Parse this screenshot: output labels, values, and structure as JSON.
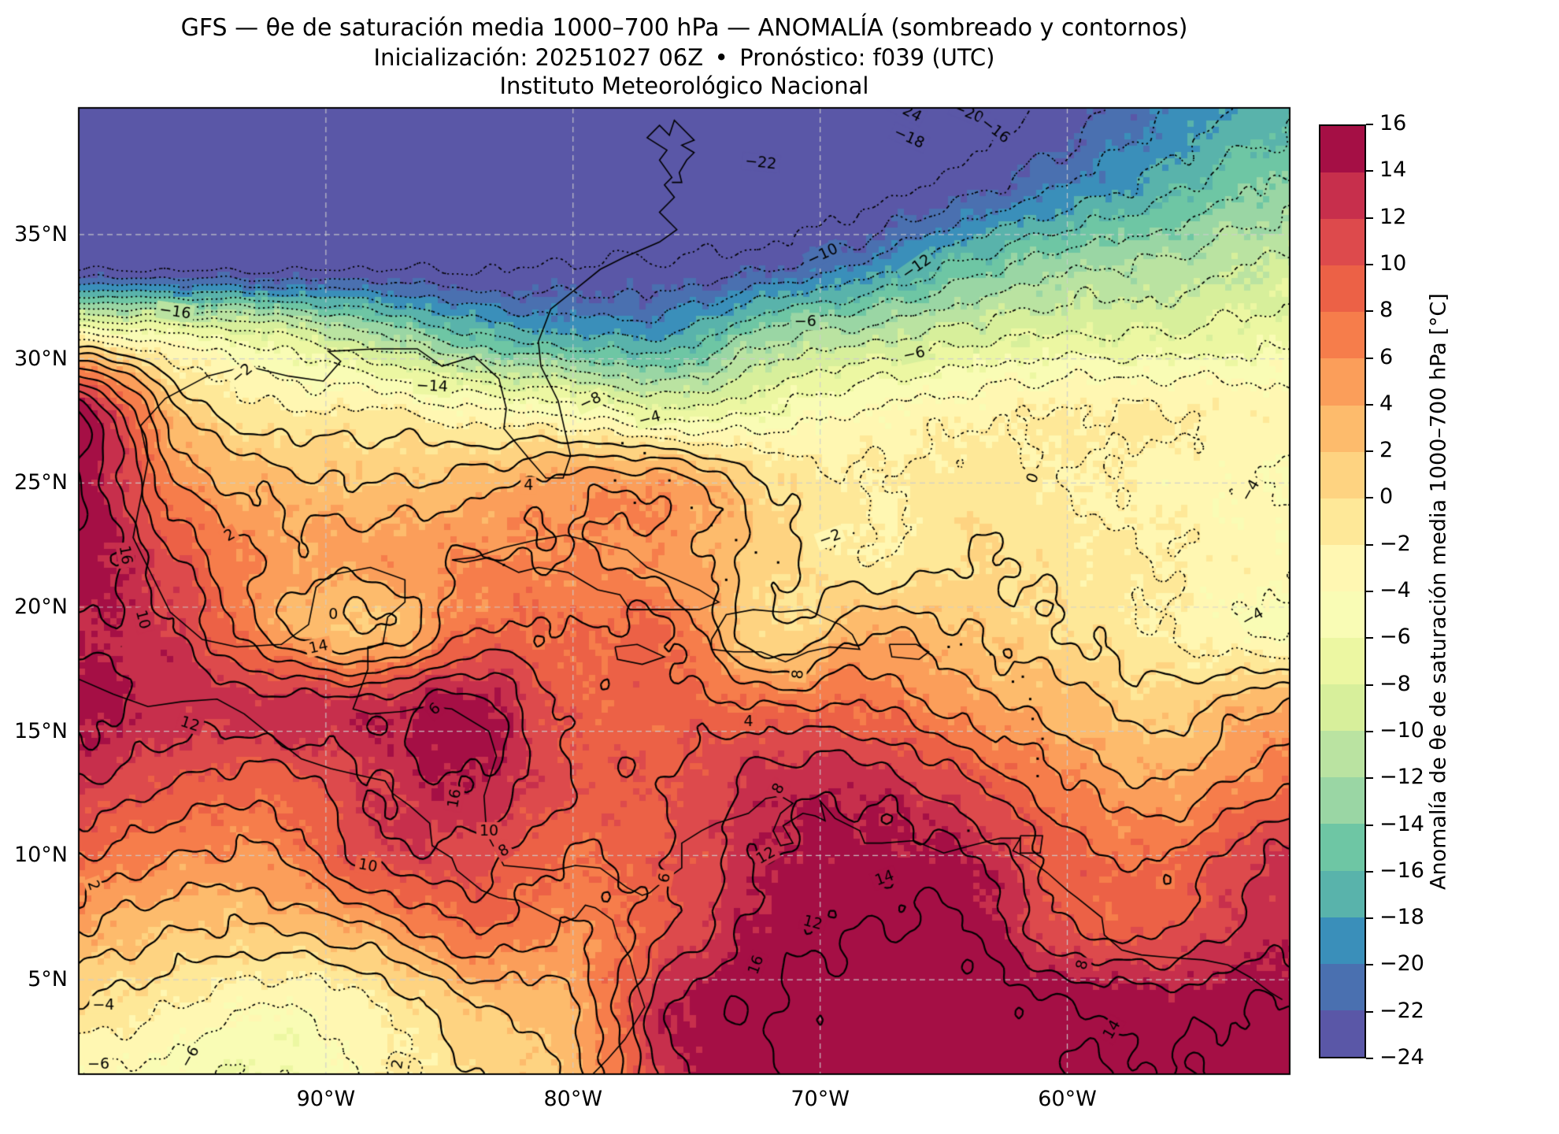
{
  "title": {
    "line1": "GFS — θe de saturación media 1000–700 hPa — ANOMALÍA (sombreado y contornos)",
    "line2": "Inicialización: 20251027 06Z — • — Pronóstico: f039 (UTC)",
    "line3": "Instituto Meteorológico Nacional"
  },
  "axes": {
    "x_ticks": [
      {
        "label": "90°W",
        "lon": -90
      },
      {
        "label": "80°W",
        "lon": -80
      },
      {
        "label": "70°W",
        "lon": -70
      },
      {
        "label": "60°W",
        "lon": -60
      }
    ],
    "y_ticks": [
      {
        "label": "35°N",
        "lat": 35
      },
      {
        "label": "30°N",
        "lat": 30
      },
      {
        "label": "25°N",
        "lat": 25
      },
      {
        "label": "20°N",
        "lat": 20
      },
      {
        "label": "15°N",
        "lat": 15
      },
      {
        "label": "10°N",
        "lat": 10
      },
      {
        "label": "5°N",
        "lat": 5
      }
    ]
  },
  "colorbar": {
    "label": "Anomalía de θe de saturación media 1000–700 hPa [°C]",
    "tick_values": [
      16,
      14,
      12,
      10,
      8,
      6,
      4,
      2,
      0,
      -2,
      -4,
      -6,
      -8,
      -10,
      -12,
      -14,
      -16,
      -18,
      -20,
      -22,
      -24
    ],
    "colors": [
      "#5a57a7",
      "#4a70b0",
      "#3a8fba",
      "#59b3ab",
      "#6ec6a4",
      "#9ad6a4",
      "#bae3a1",
      "#d7ef9b",
      "#ecf7a2",
      "#f9fcb5",
      "#fff7b2",
      "#fee898",
      "#fed381",
      "#fdbb6c",
      "#fb9e5a",
      "#f67d4b",
      "#ec6146",
      "#dd4a4c",
      "#c72f4c",
      "#a50f45"
    ]
  },
  "chart_data": {
    "type": "heatmap",
    "title": "GFS — θe de saturación media 1000–700 hPa — ANOMALÍA (sombreado y contornos)",
    "field": "Anomalía de θe de saturación media 1000–700 hPa",
    "units": "°C",
    "extent": {
      "lon_min": -100,
      "lon_max": -51,
      "lat_min": 1.2,
      "lat_max": 40.1
    },
    "contour_levels": [
      -24,
      -22,
      -20,
      -18,
      -16,
      -14,
      -12,
      -10,
      -8,
      -6,
      -4,
      -2,
      0,
      2,
      4,
      6,
      8,
      10,
      12,
      14,
      16
    ],
    "negative_contour_style": "dotted",
    "positive_contour_style": "solid",
    "lon": [
      -100,
      -96,
      -92,
      -88,
      -84,
      -80,
      -76,
      -72,
      -68,
      -64,
      -60,
      -56,
      -52
    ],
    "lat": [
      40,
      37,
      34,
      31,
      28,
      25,
      22,
      19,
      16,
      13,
      10,
      7,
      4,
      1
    ],
    "values": [
      [
        -27,
        -27,
        -27,
        -27,
        -27,
        -27,
        -27,
        -27,
        -26,
        -25,
        -23,
        -20,
        -17
      ],
      [
        -27,
        -27,
        -27,
        -27,
        -26,
        -26,
        -26,
        -26,
        -25,
        -23,
        -20,
        -17,
        -14
      ],
      [
        -26,
        -26,
        -26,
        -25,
        -25,
        -24,
        -24,
        -23,
        -20,
        -16,
        -13,
        -12,
        -10
      ],
      [
        -4,
        -6,
        -8,
        -12,
        -16,
        -18,
        -18,
        -13,
        -11,
        -9,
        -8,
        -8,
        -7
      ],
      [
        15,
        2,
        -2,
        -2,
        -4,
        -5,
        -8,
        -6,
        -4,
        -3,
        -2,
        -2,
        -3
      ],
      [
        16,
        6,
        3,
        2,
        3,
        5,
        5,
        0,
        -2,
        -1,
        -2,
        -3,
        -4
      ],
      [
        16,
        10,
        5,
        5,
        6,
        6,
        5,
        1,
        -2,
        0,
        -1,
        -2,
        -3
      ],
      [
        14,
        12,
        5,
        2,
        8,
        8,
        8,
        0,
        4,
        2,
        0,
        -2,
        -4
      ],
      [
        15,
        13,
        13,
        13,
        15,
        9,
        9,
        8,
        8,
        5,
        3,
        1,
        4
      ],
      [
        12,
        10,
        9,
        12,
        14,
        10,
        10,
        13,
        13,
        10,
        6,
        4,
        7
      ],
      [
        8,
        6,
        6,
        11,
        11,
        8,
        10,
        14,
        15,
        14,
        9,
        8,
        12
      ],
      [
        4,
        2,
        2,
        4,
        8,
        6,
        10,
        15,
        16,
        16,
        10,
        10,
        13
      ],
      [
        0,
        -2,
        -4,
        -2,
        2,
        4,
        14,
        16,
        17,
        17,
        16,
        15,
        16
      ],
      [
        -4,
        -5,
        -6,
        -3,
        0,
        3,
        13,
        16,
        17,
        17,
        16,
        16,
        17
      ]
    ]
  },
  "gridlines": {
    "lons": [
      -90,
      -80,
      -70,
      -60
    ],
    "lats": [
      5,
      10,
      15,
      20,
      25,
      30,
      35
    ]
  },
  "contour_labels": [
    {
      "t": "-16",
      "lon": -96.1,
      "lat": 31.9,
      "r": 8
    },
    {
      "t": "-2",
      "lon": -93.4,
      "lat": 29.4,
      "r": -40
    },
    {
      "t": "-14",
      "lon": -85.7,
      "lat": 28.9,
      "r": 3
    },
    {
      "t": "-8",
      "lon": -79.3,
      "lat": 28.3,
      "r": -25
    },
    {
      "t": "-4",
      "lon": -76.9,
      "lat": 27.6,
      "r": -15
    },
    {
      "t": "-22",
      "lon": -72.4,
      "lat": 37.9,
      "r": 6
    },
    {
      "t": "-24",
      "lon": -66.5,
      "lat": 40.0,
      "r": 28
    },
    {
      "t": "-20",
      "lon": -64.0,
      "lat": 39.9,
      "r": 22
    },
    {
      "t": "-18",
      "lon": -66.4,
      "lat": 38.9,
      "r": 24
    },
    {
      "t": "-16",
      "lon": -62.9,
      "lat": 39.2,
      "r": 38
    },
    {
      "t": "-12",
      "lon": -66.1,
      "lat": 33.7,
      "r": -35
    },
    {
      "t": "-10",
      "lon": -69.9,
      "lat": 34.2,
      "r": -25
    },
    {
      "t": "-6",
      "lon": -70.6,
      "lat": 31.5,
      "r": 0
    },
    {
      "t": "-6",
      "lon": -66.2,
      "lat": 30.2,
      "r": -12
    },
    {
      "t": "-4",
      "lon": -52.6,
      "lat": 24.7,
      "r": -60
    },
    {
      "t": "-4",
      "lon": -52.5,
      "lat": 19.6,
      "r": -30
    },
    {
      "t": "0",
      "lon": -61.4,
      "lat": 25.2,
      "r": -70
    },
    {
      "t": "-2",
      "lon": -69.6,
      "lat": 22.8,
      "r": -20
    },
    {
      "t": "2",
      "lon": -93.9,
      "lat": 22.9,
      "r": -30
    },
    {
      "t": "0",
      "lon": -89.7,
      "lat": 19.7,
      "r": 0
    },
    {
      "t": "4",
      "lon": -81.8,
      "lat": 24.9,
      "r": 0
    },
    {
      "t": "16",
      "lon": -98.1,
      "lat": 22.1,
      "r": 80
    },
    {
      "t": "10",
      "lon": -97.4,
      "lat": 19.5,
      "r": 75
    },
    {
      "t": "12",
      "lon": -95.5,
      "lat": 15.3,
      "r": 18
    },
    {
      "t": "14",
      "lon": -90.3,
      "lat": 18.4,
      "r": -12
    },
    {
      "t": "6",
      "lon": -85.6,
      "lat": 15.9,
      "r": -40
    },
    {
      "t": "16",
      "lon": -84.8,
      "lat": 12.3,
      "r": -80
    },
    {
      "t": "10",
      "lon": -83.4,
      "lat": 11.0,
      "r": 0
    },
    {
      "t": "8",
      "lon": -82.8,
      "lat": 10.2,
      "r": -30
    },
    {
      "t": "10",
      "lon": -88.3,
      "lat": 9.6,
      "r": 10
    },
    {
      "t": "2",
      "lon": -99.4,
      "lat": 8.8,
      "r": 70
    },
    {
      "t": "-4",
      "lon": -99.0,
      "lat": 4.0,
      "r": 0
    },
    {
      "t": "-6",
      "lon": -99.2,
      "lat": 1.6,
      "r": 0
    },
    {
      "t": "-6",
      "lon": -95.5,
      "lat": 1.9,
      "r": -60
    },
    {
      "t": "2",
      "lon": -87.1,
      "lat": 1.6,
      "r": -80
    },
    {
      "t": "8",
      "lon": -70.9,
      "lat": 17.3,
      "r": -85
    },
    {
      "t": "4",
      "lon": -72.9,
      "lat": 15.4,
      "r": 0
    },
    {
      "t": "8",
      "lon": -71.7,
      "lat": 12.7,
      "r": -60
    },
    {
      "t": "12",
      "lon": -72.2,
      "lat": 10.0,
      "r": -30
    },
    {
      "t": "14",
      "lon": -67.4,
      "lat": 9.1,
      "r": -20
    },
    {
      "t": "12",
      "lon": -70.3,
      "lat": 7.3,
      "r": 15
    },
    {
      "t": "16",
      "lon": -72.6,
      "lat": 5.6,
      "r": -70
    },
    {
      "t": "8",
      "lon": -59.4,
      "lat": 5.6,
      "r": -75
    },
    {
      "t": "14",
      "lon": -58.2,
      "lat": 3.0,
      "r": -60
    },
    {
      "t": "6",
      "lon": -76.3,
      "lat": 9.1,
      "r": -80
    }
  ],
  "coastlines": [
    [
      [
        -97.2,
        25.9
      ],
      [
        -97.5,
        27.3
      ],
      [
        -96.5,
        28.4
      ],
      [
        -94.8,
        29.3
      ],
      [
        -93.2,
        29.7
      ],
      [
        -91.5,
        29.3
      ],
      [
        -90.1,
        29.1
      ],
      [
        -89.4,
        29.9
      ],
      [
        -89.9,
        30.3
      ],
      [
        -88.0,
        30.4
      ],
      [
        -86.3,
        30.4
      ],
      [
        -85.3,
        29.7
      ],
      [
        -84.0,
        30.1
      ],
      [
        -83.0,
        29.2
      ],
      [
        -82.7,
        28.0
      ],
      [
        -82.8,
        27.2
      ],
      [
        -81.8,
        26.0
      ],
      [
        -81.1,
        25.2
      ],
      [
        -80.4,
        25.2
      ],
      [
        -80.1,
        26.1
      ],
      [
        -80.6,
        28.3
      ],
      [
        -81.3,
        29.7
      ],
      [
        -81.4,
        30.7
      ],
      [
        -80.9,
        32.0
      ],
      [
        -79.9,
        32.8
      ],
      [
        -78.9,
        33.6
      ],
      [
        -77.9,
        34.1
      ],
      [
        -76.5,
        34.7
      ],
      [
        -75.8,
        35.2
      ],
      [
        -76.5,
        35.9
      ],
      [
        -75.9,
        36.5
      ],
      [
        -76.3,
        37.0
      ],
      [
        -76.0,
        37.3
      ],
      [
        -76.5,
        38.0
      ],
      [
        -76.2,
        38.4
      ],
      [
        -77.0,
        38.9
      ],
      [
        -76.5,
        39.4
      ],
      [
        -76.1,
        39.0
      ],
      [
        -75.9,
        39.6
      ],
      [
        -75.1,
        38.8
      ],
      [
        -75.6,
        38.6
      ],
      [
        -75.1,
        38.3
      ],
      [
        -75.4,
        38.0
      ],
      [
        -75.7,
        37.5
      ],
      [
        -75.6,
        37.1
      ],
      [
        -76.0,
        37.1
      ]
    ],
    [
      [
        -97.2,
        25.9
      ],
      [
        -97.8,
        22.8
      ],
      [
        -96.3,
        19.8
      ],
      [
        -95.0,
        18.7
      ],
      [
        -93.6,
        18.4
      ],
      [
        -91.8,
        18.5
      ],
      [
        -90.7,
        19.3
      ],
      [
        -90.4,
        20.8
      ],
      [
        -89.8,
        21.3
      ],
      [
        -88.2,
        21.6
      ],
      [
        -86.8,
        21.1
      ],
      [
        -86.8,
        20.2
      ],
      [
        -87.5,
        19.6
      ],
      [
        -87.7,
        18.5
      ],
      [
        -88.3,
        18.4
      ],
      [
        -88.3,
        17.5
      ],
      [
        -88.9,
        15.9
      ],
      [
        -88.2,
        15.7
      ],
      [
        -86.9,
        15.8
      ],
      [
        -85.9,
        16.0
      ],
      [
        -84.9,
        15.9
      ],
      [
        -83.4,
        15.0
      ],
      [
        -83.1,
        14.0
      ],
      [
        -83.6,
        12.4
      ],
      [
        -83.5,
        10.9
      ],
      [
        -82.8,
        9.6
      ],
      [
        -81.7,
        9.5
      ],
      [
        -80.8,
        9.4
      ],
      [
        -79.9,
        9.6
      ],
      [
        -78.9,
        9.5
      ],
      [
        -77.8,
        8.7
      ],
      [
        -77.2,
        8.4
      ],
      [
        -76.9,
        8.5
      ],
      [
        -76.3,
        9.0
      ],
      [
        -75.6,
        9.5
      ],
      [
        -75.6,
        10.5
      ],
      [
        -74.8,
        11.0
      ],
      [
        -74.2,
        11.3
      ],
      [
        -72.9,
        11.7
      ],
      [
        -72.2,
        12.3
      ],
      [
        -71.6,
        12.4
      ],
      [
        -71.1,
        12.1
      ],
      [
        -71.6,
        11.7
      ],
      [
        -71.9,
        11.0
      ],
      [
        -71.6,
        10.4
      ],
      [
        -71.1,
        10.5
      ],
      [
        -71.5,
        11.2
      ],
      [
        -70.7,
        11.7
      ],
      [
        -70.2,
        11.6
      ],
      [
        -69.8,
        11.4
      ],
      [
        -70.0,
        12.2
      ],
      [
        -69.4,
        11.5
      ],
      [
        -68.4,
        11.0
      ],
      [
        -68.2,
        10.5
      ],
      [
        -67.5,
        10.5
      ],
      [
        -66.2,
        10.6
      ],
      [
        -65.0,
        10.1
      ],
      [
        -63.9,
        10.4
      ],
      [
        -62.7,
        10.7
      ],
      [
        -61.9,
        10.7
      ],
      [
        -62.2,
        10.2
      ],
      [
        -61.6,
        9.9
      ],
      [
        -60.8,
        9.3
      ],
      [
        -60.0,
        8.6
      ],
      [
        -59.6,
        8.3
      ],
      [
        -58.6,
        7.5
      ],
      [
        -58.5,
        6.8
      ],
      [
        -57.8,
        6.2
      ],
      [
        -57.0,
        6.0
      ],
      [
        -55.9,
        5.9
      ],
      [
        -54.5,
        5.8
      ],
      [
        -53.5,
        5.6
      ],
      [
        -52.6,
        5.1
      ],
      [
        -51.8,
        4.5
      ],
      [
        -51.3,
        4.2
      ]
    ],
    [
      [
        -100.0,
        17.1
      ],
      [
        -98.6,
        16.5
      ],
      [
        -97.2,
        16.0
      ],
      [
        -95.8,
        16.2
      ],
      [
        -94.4,
        16.3
      ],
      [
        -93.3,
        15.7
      ],
      [
        -92.3,
        14.9
      ],
      [
        -91.0,
        13.9
      ],
      [
        -89.8,
        13.5
      ],
      [
        -88.5,
        13.2
      ],
      [
        -87.6,
        13.0
      ],
      [
        -87.3,
        12.5
      ],
      [
        -86.6,
        12.0
      ],
      [
        -85.8,
        11.3
      ],
      [
        -85.7,
        10.4
      ],
      [
        -84.9,
        9.9
      ],
      [
        -84.7,
        9.4
      ],
      [
        -83.7,
        8.6
      ],
      [
        -83.0,
        8.3
      ],
      [
        -82.2,
        8.2
      ],
      [
        -81.2,
        7.7
      ],
      [
        -80.4,
        7.3
      ],
      [
        -79.9,
        7.5
      ],
      [
        -79.5,
        8.0
      ],
      [
        -79.1,
        7.9
      ],
      [
        -78.4,
        7.4
      ],
      [
        -78.2,
        6.7
      ],
      [
        -77.7,
        5.9
      ],
      [
        -77.4,
        4.8
      ],
      [
        -77.1,
        3.9
      ],
      [
        -77.9,
        2.6
      ],
      [
        -78.6,
        1.8
      ],
      [
        -79.2,
        1.2
      ]
    ],
    [
      [
        -84.9,
        21.9
      ],
      [
        -84.0,
        22.0
      ],
      [
        -82.8,
        22.4
      ],
      [
        -81.5,
        22.7
      ],
      [
        -80.3,
        22.9
      ],
      [
        -79.1,
        22.6
      ],
      [
        -77.8,
        22.3
      ],
      [
        -77.0,
        21.6
      ],
      [
        -75.8,
        21.1
      ],
      [
        -74.9,
        20.7
      ],
      [
        -74.1,
        20.2
      ],
      [
        -74.9,
        19.9
      ],
      [
        -76.3,
        19.9
      ],
      [
        -77.7,
        19.9
      ],
      [
        -78.1,
        20.5
      ],
      [
        -79.0,
        20.7
      ],
      [
        -80.2,
        21.4
      ],
      [
        -81.4,
        21.6
      ],
      [
        -82.2,
        21.4
      ],
      [
        -83.4,
        22.0
      ],
      [
        -84.4,
        21.8
      ],
      [
        -84.9,
        21.9
      ]
    ],
    [
      [
        -74.4,
        18.7
      ],
      [
        -73.8,
        19.7
      ],
      [
        -72.7,
        19.9
      ],
      [
        -71.6,
        19.8
      ],
      [
        -70.5,
        19.9
      ],
      [
        -69.9,
        19.6
      ],
      [
        -69.2,
        19.3
      ],
      [
        -68.7,
        18.9
      ],
      [
        -68.4,
        18.3
      ],
      [
        -69.6,
        18.4
      ],
      [
        -70.5,
        18.2
      ],
      [
        -71.4,
        17.8
      ],
      [
        -72.4,
        18.2
      ],
      [
        -73.5,
        18.2
      ],
      [
        -74.4,
        18.3
      ],
      [
        -74.4,
        18.7
      ]
    ],
    [
      [
        -78.3,
        18.4
      ],
      [
        -77.4,
        18.5
      ],
      [
        -76.3,
        18.0
      ],
      [
        -77.2,
        17.7
      ],
      [
        -78.2,
        17.9
      ],
      [
        -78.3,
        18.4
      ]
    ],
    [
      [
        -67.2,
        18.5
      ],
      [
        -66.1,
        18.5
      ],
      [
        -65.6,
        18.2
      ],
      [
        -66.0,
        17.9
      ],
      [
        -67.1,
        18.0
      ],
      [
        -67.2,
        18.5
      ]
    ],
    [
      [
        -61.9,
        10.8
      ],
      [
        -61.0,
        10.8
      ],
      [
        -61.1,
        10.1
      ],
      [
        -61.9,
        10.1
      ],
      [
        -61.9,
        10.8
      ]
    ]
  ],
  "islands": [
    [
      -78.0,
      26.6
    ],
    [
      -77.1,
      26.2
    ],
    [
      -78.3,
      25.1
    ],
    [
      -77.5,
      24.2
    ],
    [
      -76.1,
      25.1
    ],
    [
      -75.2,
      24.0
    ],
    [
      -74.4,
      23.3
    ],
    [
      -73.4,
      22.7
    ],
    [
      -72.6,
      22.2
    ],
    [
      -73.8,
      21.1
    ],
    [
      -71.7,
      21.8
    ],
    [
      -82.8,
      21.7
    ],
    [
      -63.1,
      18.1
    ],
    [
      -62.2,
      17.0
    ],
    [
      -61.8,
      17.2
    ],
    [
      -61.5,
      16.3
    ],
    [
      -61.4,
      15.5
    ],
    [
      -61.0,
      14.7
    ],
    [
      -61.2,
      13.9
    ],
    [
      -61.2,
      13.2
    ],
    [
      -64.8,
      18.4
    ],
    [
      -64.3,
      18.5
    ],
    [
      -64.0,
      11.0
    ]
  ]
}
